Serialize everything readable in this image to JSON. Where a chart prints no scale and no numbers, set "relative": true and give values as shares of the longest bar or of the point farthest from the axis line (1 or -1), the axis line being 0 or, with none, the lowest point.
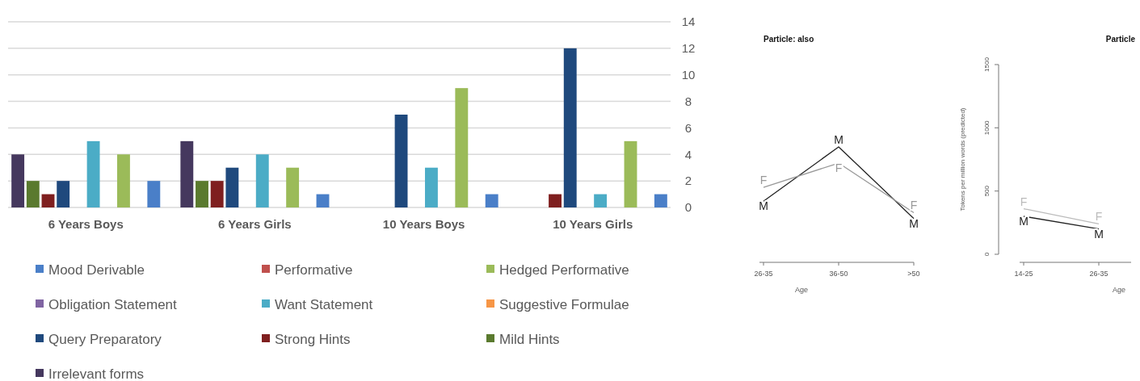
{
  "chart_data": [
    {
      "type": "bar",
      "categories": [
        "6 Years Boys",
        "6 Years Girls",
        "10 Years Boys",
        "10 Years Girls"
      ],
      "ylim": [
        0,
        14
      ],
      "yticks": [
        0,
        2,
        4,
        6,
        8,
        10,
        12,
        14
      ],
      "grid": "y",
      "legend": "bottom",
      "series": [
        {
          "name": "Mood Derivable",
          "color": "#4a7fc8",
          "values": [
            2,
            1,
            1,
            1
          ]
        },
        {
          "name": "Performative",
          "color": "#c0504d",
          "values": [
            0,
            0,
            0,
            0
          ]
        },
        {
          "name": "Hedged Performative",
          "color": "#9bbb59",
          "values": [
            4,
            3,
            9,
            5
          ]
        },
        {
          "name": "Obligation Statement",
          "color": "#8064a2",
          "values": [
            0,
            0,
            0,
            0
          ]
        },
        {
          "name": "Want Statement",
          "color": "#4bacc6",
          "values": [
            5,
            4,
            3,
            1
          ]
        },
        {
          "name": "Suggestive Formulae",
          "color": "#f79646",
          "values": [
            0,
            0,
            0,
            0
          ]
        },
        {
          "name": "Query Preparatory",
          "color": "#1f497d",
          "values": [
            2,
            3,
            7,
            12
          ]
        },
        {
          "name": "Strong Hints",
          "color": "#7f1f1f",
          "values": [
            1,
            2,
            0,
            1
          ]
        },
        {
          "name": "Mild Hints",
          "color": "#5a7a2e",
          "values": [
            2,
            2,
            0,
            0
          ]
        },
        {
          "name": "Irrelevant forms",
          "color": "#45385e",
          "values": [
            4,
            5,
            0,
            0
          ]
        }
      ]
    },
    {
      "type": "line",
      "title": "Particle: also",
      "xlabel": "Age",
      "categories": [
        "26-35",
        "36-50",
        ">50"
      ],
      "relative": true,
      "series": [
        {
          "name": "M",
          "color": "#222222",
          "values": [
            0.53,
            1,
            0.38
          ]
        },
        {
          "name": "F",
          "color": "#999999",
          "values": [
            0.65,
            0.86,
            0.43
          ]
        }
      ]
    },
    {
      "type": "line",
      "title": "Particle",
      "xlabel": "Age",
      "ylabel": "Tokens per million words (predicted)",
      "categories": [
        "14-25",
        "26-35"
      ],
      "ylim": [
        0,
        1500
      ],
      "yticks": [
        0,
        500,
        1000,
        1500
      ],
      "series": [
        {
          "name": "M",
          "color": "#222222",
          "values": [
            300,
            200
          ]
        },
        {
          "name": "F",
          "color": "#bbbbbb",
          "values": [
            360,
            240
          ]
        }
      ]
    }
  ]
}
